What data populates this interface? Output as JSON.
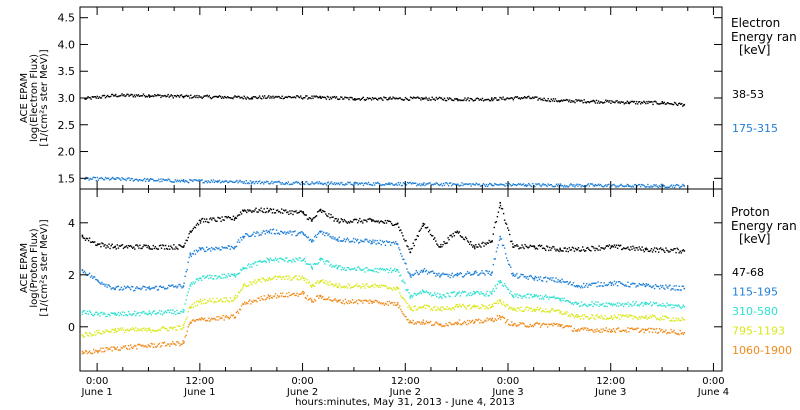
{
  "figure": {
    "xaxis_title": "hours:minutes, May 31, 2013 - June  4, 2013",
    "x_ticks": [
      {
        "t": 0,
        "time": "0:00",
        "date": "June 1"
      },
      {
        "t": 12,
        "time": "12:00",
        "date": "June 1"
      },
      {
        "t": 24,
        "time": "0:00",
        "date": "June 2"
      },
      {
        "t": 36,
        "time": "12:00",
        "date": "June 2"
      },
      {
        "t": 48,
        "time": "0:00",
        "date": "June 3"
      },
      {
        "t": 60,
        "time": "12:00",
        "date": "June 3"
      },
      {
        "t": 72,
        "time": "0:00",
        "date": "June 4"
      }
    ]
  },
  "chart_data": [
    {
      "type": "scatter",
      "name": "electron",
      "ylabel_lines": [
        "ACE EPAM",
        "log(Electron Flux)",
        "[1/(cm²s ster MeV)]"
      ],
      "ylim": [
        1.3,
        4.7
      ],
      "yticks": [
        1.5,
        2.0,
        2.5,
        3.0,
        3.5,
        4.0,
        4.5
      ],
      "ytick_labels": [
        "1.5",
        "2.0",
        "2.5",
        "3.0",
        "3.5",
        "4.0",
        "4.5"
      ],
      "x_unit": "hours from 0:00 June 1",
      "xlim": [
        -2,
        73
      ],
      "legend_lines": [
        "Electron",
        "Energy ran",
        "[keV]"
      ],
      "series": [
        {
          "name": "38-53",
          "color": "#000000",
          "x": [
            -1.5,
            2,
            6,
            10,
            14,
            18,
            22,
            26,
            30,
            34,
            38,
            42,
            46,
            50,
            54,
            58,
            62,
            66,
            68.5
          ],
          "y": [
            3.0,
            3.06,
            3.06,
            3.04,
            3.03,
            3.02,
            3.03,
            3.02,
            3.0,
            3.0,
            3.0,
            2.99,
            2.99,
            3.02,
            2.96,
            2.95,
            2.93,
            2.92,
            2.89
          ]
        },
        {
          "name": "175-315",
          "color": "#1f7fd6",
          "x": [
            -1.5,
            2,
            6,
            10,
            14,
            18,
            22,
            26,
            30,
            34,
            38,
            42,
            46,
            50,
            54,
            58,
            62,
            66,
            68.5
          ],
          "y": [
            1.5,
            1.5,
            1.48,
            1.46,
            1.46,
            1.44,
            1.43,
            1.42,
            1.41,
            1.41,
            1.4,
            1.4,
            1.39,
            1.39,
            1.38,
            1.38,
            1.37,
            1.37,
            1.37
          ]
        }
      ]
    },
    {
      "type": "scatter",
      "name": "proton",
      "ylabel_lines": [
        "ACE EPAM",
        "log(Proton Flux)",
        "[1/(cm²s ster MeV)]"
      ],
      "ylim": [
        -1.7,
        5.3
      ],
      "yticks": [
        0,
        2,
        4
      ],
      "ytick_labels": [
        "0",
        "2",
        "4"
      ],
      "x_unit": "hours from 0:00 June 1",
      "xlim": [
        -2,
        73
      ],
      "legend_lines": [
        "Proton",
        "Energy ran",
        "[keV]"
      ],
      "series": [
        {
          "name": "47-68",
          "color": "#000000",
          "x": [
            -1.8,
            0,
            2,
            6,
            10,
            10.8,
            12,
            16,
            17,
            20,
            24,
            25,
            26,
            28,
            32,
            35,
            36.5,
            38,
            40,
            42,
            44,
            46,
            47,
            48.5,
            51,
            54,
            56,
            60,
            64,
            68.5
          ],
          "y": [
            3.5,
            3.2,
            3.1,
            3.1,
            3.1,
            3.7,
            4.1,
            4.2,
            4.5,
            4.5,
            4.4,
            4.1,
            4.5,
            4.1,
            4.1,
            4.0,
            2.9,
            4.0,
            3.1,
            3.7,
            3.1,
            3.3,
            4.8,
            3.1,
            3.1,
            3.0,
            3.0,
            3.1,
            3.0,
            2.95
          ]
        },
        {
          "name": "115-195",
          "color": "#1f7fd6",
          "x": [
            -1.8,
            0,
            2,
            6,
            10,
            10.8,
            12,
            16,
            17,
            20,
            24,
            25,
            26,
            28,
            32,
            35,
            36.5,
            38,
            40,
            42,
            44,
            46,
            47,
            48.5,
            51,
            54,
            56,
            60,
            64,
            68.5
          ],
          "y": [
            2.2,
            1.8,
            1.5,
            1.5,
            1.6,
            2.8,
            3.0,
            3.1,
            3.5,
            3.7,
            3.6,
            3.3,
            3.7,
            3.4,
            3.3,
            3.2,
            2.0,
            2.2,
            2.0,
            2.0,
            2.1,
            2.1,
            3.5,
            2.0,
            1.9,
            1.8,
            1.6,
            1.7,
            1.6,
            1.5
          ]
        },
        {
          "name": "310-580",
          "color": "#2ee0cf",
          "x": [
            -1.8,
            0,
            2,
            6,
            10,
            10.8,
            12,
            16,
            17,
            20,
            24,
            25,
            26,
            28,
            32,
            35,
            36.5,
            38,
            40,
            42,
            44,
            46,
            47,
            48.5,
            51,
            54,
            56,
            60,
            64,
            68.5
          ],
          "y": [
            0.6,
            0.5,
            0.5,
            0.55,
            0.6,
            1.6,
            1.9,
            2.0,
            2.3,
            2.6,
            2.6,
            2.3,
            2.6,
            2.3,
            2.2,
            2.2,
            1.2,
            1.4,
            1.2,
            1.3,
            1.3,
            1.3,
            1.8,
            1.2,
            1.2,
            1.1,
            0.9,
            0.9,
            0.9,
            0.8
          ]
        },
        {
          "name": "795-1193",
          "color": "#d8e81a",
          "x": [
            -1.8,
            0,
            2,
            6,
            10,
            10.8,
            12,
            16,
            17,
            20,
            24,
            25,
            26,
            28,
            32,
            35,
            36.5,
            38,
            40,
            42,
            44,
            46,
            47,
            48.5,
            51,
            54,
            56,
            60,
            64,
            68.5
          ],
          "y": [
            -0.3,
            -0.2,
            -0.1,
            -0.1,
            0.0,
            0.8,
            1.0,
            1.1,
            1.6,
            1.9,
            1.9,
            1.6,
            1.8,
            1.6,
            1.6,
            1.5,
            0.7,
            0.8,
            0.7,
            0.8,
            0.8,
            0.8,
            1.0,
            0.7,
            0.7,
            0.6,
            0.4,
            0.4,
            0.4,
            0.3
          ]
        },
        {
          "name": "1060-1900",
          "color": "#f08a1a",
          "x": [
            -1.8,
            0,
            2,
            6,
            10,
            10.8,
            12,
            16,
            17,
            20,
            24,
            25,
            26,
            28,
            32,
            35,
            36.5,
            38,
            40,
            42,
            44,
            46,
            47,
            48.5,
            51,
            54,
            56,
            60,
            64,
            68.5
          ],
          "y": [
            -1.0,
            -0.9,
            -0.8,
            -0.7,
            -0.6,
            0.2,
            0.3,
            0.4,
            0.9,
            1.2,
            1.3,
            1.0,
            1.2,
            1.0,
            1.0,
            0.9,
            0.2,
            0.2,
            0.1,
            0.2,
            0.2,
            0.3,
            0.4,
            0.1,
            0.1,
            0.1,
            -0.1,
            -0.1,
            -0.1,
            -0.2
          ]
        }
      ]
    }
  ]
}
